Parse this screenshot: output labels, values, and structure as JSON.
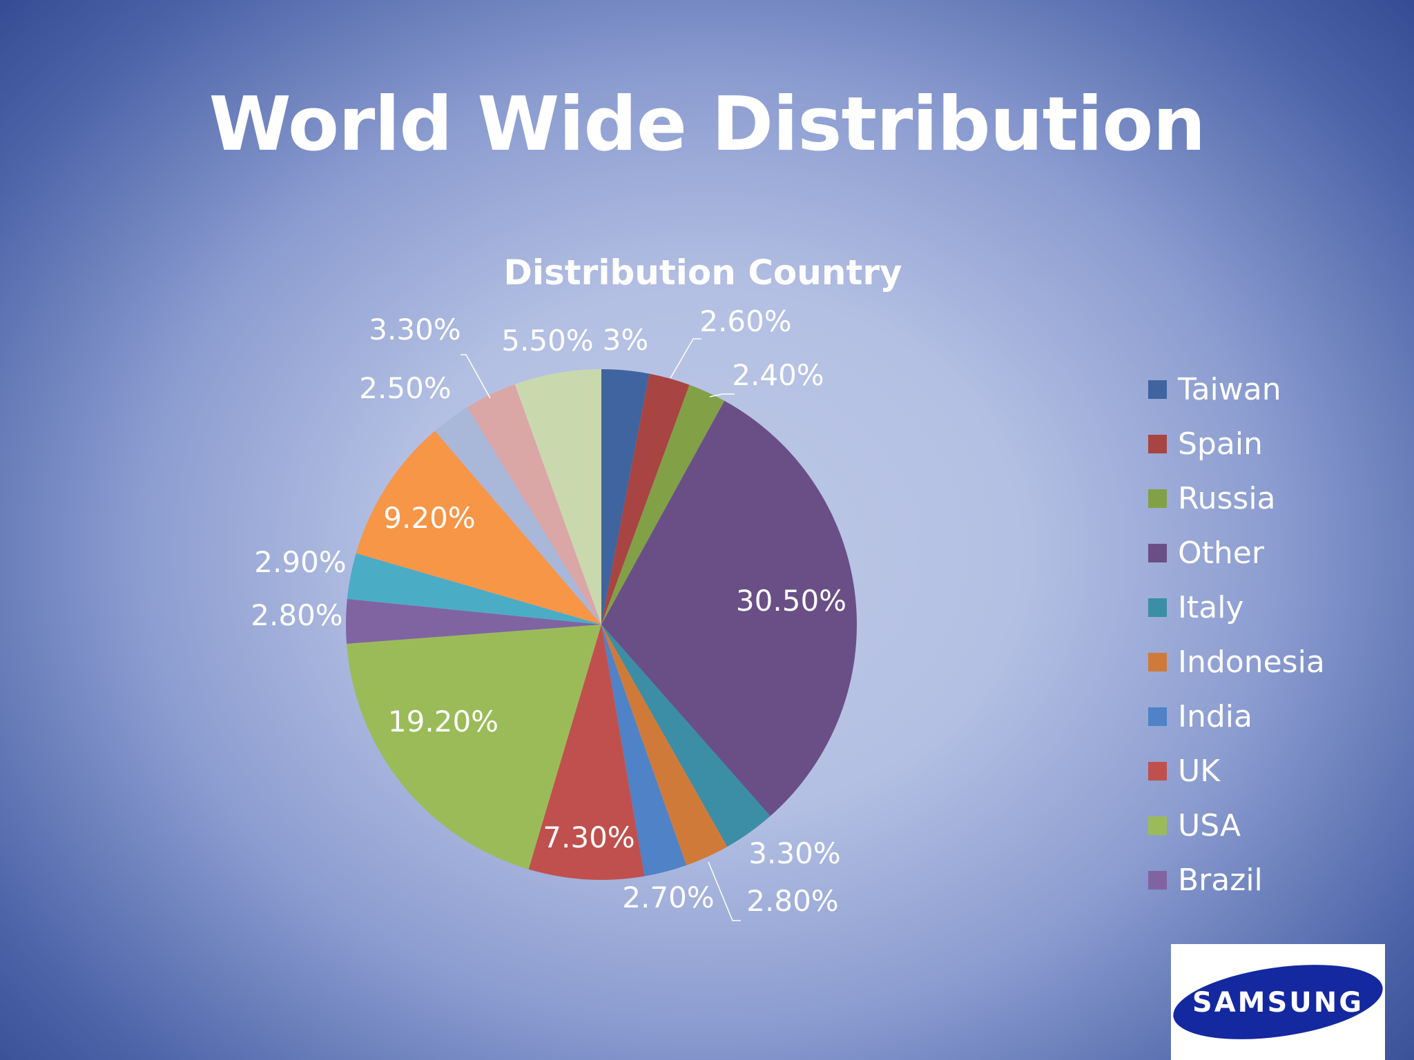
{
  "slide": {
    "title": "World Wide Distribution"
  },
  "logo": {
    "text": "SAMSUNG",
    "color": "#1428a0"
  },
  "chart_data": {
    "type": "pie",
    "title": "Distribution Country",
    "legend_position": "right",
    "categories": [
      "Taiwan",
      "Spain",
      "Russia",
      "Other",
      "Italy",
      "Indonesia",
      "India",
      "UK",
      "USA",
      "Brazil",
      "",
      "",
      "",
      "",
      ""
    ],
    "values": [
      3,
      2.6,
      2.4,
      30.5,
      3.3,
      2.8,
      2.7,
      7.3,
      19.2,
      2.8,
      2.9,
      9.2,
      2.5,
      3.3,
      5.5
    ],
    "labels": [
      "3%",
      "2.60%",
      "2.40%",
      "30.50%",
      "3.30%",
      "2.80%",
      "2.70%",
      "7.30%",
      "19.20%",
      "2.80%",
      "2.90%",
      "9.20%",
      "2.50%",
      "3.30%",
      "5.50%"
    ],
    "colors": [
      "#3f64a0",
      "#a84442",
      "#82a046",
      "#6a4f87",
      "#3b8ea5",
      "#d07a3a",
      "#4f82c6",
      "#c0504d",
      "#9bbb59",
      "#8064a2",
      "#4bacc6",
      "#f79646",
      "#a9b7d9",
      "#dba6a6",
      "#cad9ad"
    ],
    "legend": [
      "Taiwan",
      "Spain",
      "Russia",
      "Other",
      "Italy",
      "Indonesia",
      "India",
      "UK",
      "USA",
      "Brazil"
    ]
  }
}
